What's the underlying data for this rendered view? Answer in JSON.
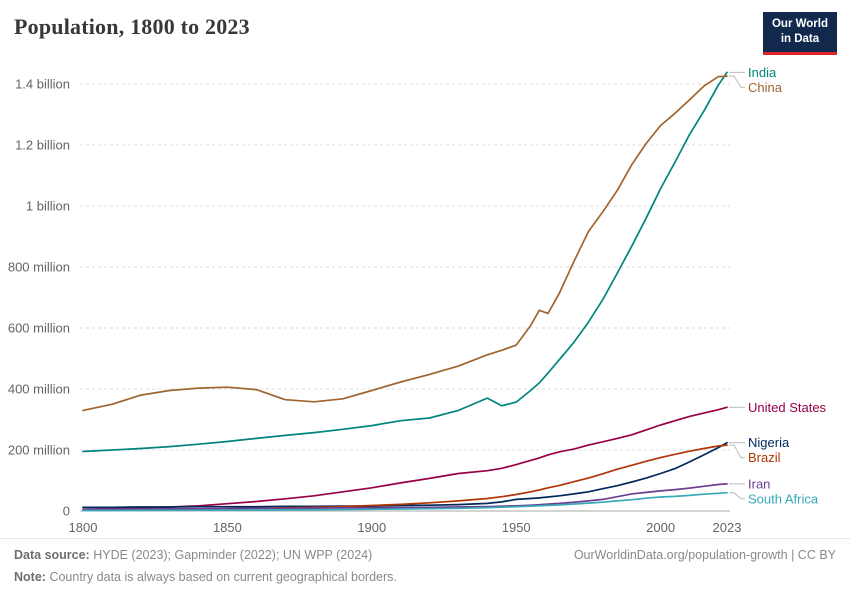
{
  "header": {
    "title": "Population, 1800 to 2023",
    "logo": {
      "line1": "Our World",
      "line2": "in Data"
    }
  },
  "chart_data": {
    "type": "line",
    "title": "Population, 1800 to 2023",
    "xlabel": "",
    "ylabel": "",
    "unit": "million people",
    "ylim": [
      0,
      1400
    ],
    "x_range": [
      1800,
      2023
    ],
    "grid": "dashed-horizontal",
    "legend_position": "right-end-labels",
    "x": [
      1800,
      1810,
      1820,
      1830,
      1840,
      1850,
      1860,
      1870,
      1880,
      1890,
      1900,
      1910,
      1920,
      1930,
      1940,
      1945,
      1950,
      1955,
      1958,
      1961,
      1965,
      1970,
      1975,
      1980,
      1985,
      1990,
      1995,
      2000,
      2005,
      2010,
      2015,
      2020,
      2023
    ],
    "x_ticks": [
      1800,
      1850,
      1900,
      1950,
      2000,
      2023
    ],
    "y_ticks": [
      {
        "v": 0,
        "label": "0"
      },
      {
        "v": 200,
        "label": "200 million"
      },
      {
        "v": 400,
        "label": "400 million"
      },
      {
        "v": 600,
        "label": "600 million"
      },
      {
        "v": 800,
        "label": "800 million"
      },
      {
        "v": 1000,
        "label": "1 billion"
      },
      {
        "v": 1200,
        "label": "1.2 billion"
      },
      {
        "v": 1400,
        "label": "1.4 billion"
      }
    ],
    "series": [
      {
        "name": "India",
        "color": "#00847E",
        "values": [
          195,
          200,
          205,
          211,
          219,
          228,
          238,
          248,
          257,
          268,
          280,
          296,
          305,
          330,
          370,
          345,
          357,
          395,
          420,
          452,
          497,
          553,
          619,
          693,
          780,
          868,
          960,
          1057,
          1144,
          1234,
          1311,
          1396,
          1438
        ]
      },
      {
        "name": "China",
        "color": "#A0642F",
        "values": [
          330,
          350,
          380,
          395,
          403,
          406,
          398,
          365,
          358,
          368,
          395,
          423,
          448,
          475,
          512,
          527,
          544,
          608,
          658,
          648,
          715,
          818,
          916,
          981,
          1051,
          1135,
          1205,
          1264,
          1304,
          1348,
          1393,
          1424,
          1426
        ]
      },
      {
        "name": "United States",
        "color": "#970046",
        "values": [
          6,
          8,
          10,
          13,
          17,
          24,
          31,
          40,
          50,
          63,
          76,
          92,
          107,
          123,
          132,
          140,
          152,
          166,
          174,
          184,
          194,
          203,
          216,
          227,
          238,
          250,
          266,
          282,
          296,
          310,
          321,
          332,
          340
        ]
      },
      {
        "name": "Nigeria",
        "color": "#00295B",
        "values": [
          12,
          12,
          13,
          13,
          14,
          14,
          14,
          15,
          15,
          16,
          16,
          18,
          19,
          21,
          25,
          30,
          38,
          41,
          43,
          46,
          50,
          56,
          63,
          73,
          83,
          95,
          108,
          123,
          139,
          161,
          184,
          208,
          224
        ]
      },
      {
        "name": "Brazil",
        "color": "#B13507",
        "values": [
          3,
          4,
          4.5,
          5.5,
          6.5,
          7.5,
          9,
          10,
          12,
          14.5,
          18,
          22,
          27,
          33,
          41,
          47,
          54,
          63,
          69,
          76,
          84,
          96,
          108,
          122,
          137,
          150,
          163,
          175,
          186,
          196,
          205,
          213,
          216
        ]
      },
      {
        "name": "Iran",
        "color": "#6D3E91",
        "values": [
          6,
          6.2,
          6.5,
          7,
          7.5,
          8,
          8.5,
          9,
          9.5,
          10,
          10.5,
          11,
          12,
          13,
          14.5,
          15.7,
          17,
          19,
          20.5,
          22.5,
          25,
          29,
          33,
          38,
          47,
          56,
          61,
          66,
          70,
          75,
          81,
          87,
          89
        ]
      },
      {
        "name": "South Africa",
        "color": "#38AABA",
        "values": [
          1.5,
          1.7,
          2,
          2.2,
          2.5,
          2.8,
          3.2,
          3.7,
          4.3,
          4.9,
          5.6,
          6.5,
          7.5,
          9,
          11,
          12.5,
          14,
          16,
          17,
          18.5,
          20,
          23,
          26,
          29,
          33,
          37,
          42,
          46,
          48,
          51,
          55,
          58,
          60
        ]
      }
    ]
  },
  "footer": {
    "sources_label": "Data source:",
    "sources_text": "HYDE (2023); Gapminder (2022); UN WPP (2024)",
    "link_text": "OurWorldinData.org/population-growth | CC BY",
    "note_label": "Note:",
    "note_text": "Country data is always based on current geographical borders."
  }
}
